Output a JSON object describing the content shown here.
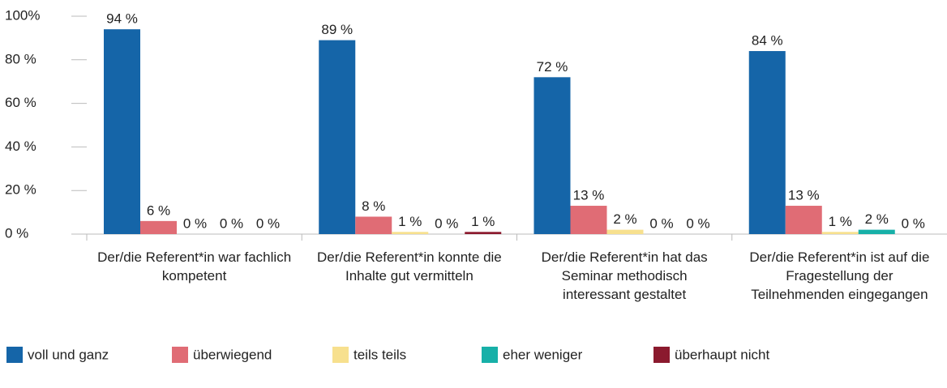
{
  "chart_data": {
    "type": "bar",
    "categories": [
      "Der/die Referent*in war fachlich kompetent",
      "Der/die Referent*in konnte die Inhalte gut vermitteln",
      "Der/die Referent*in hat das Seminar methodisch interessant gestaltet",
      "Der/die Referent*in ist auf die Fragestellung der Teilnehmenden eingegangen"
    ],
    "series": [
      {
        "name": "voll und ganz",
        "color": "#1565a8",
        "values": [
          94,
          89,
          72,
          84
        ],
        "value_labels": [
          "94 %",
          "89 %",
          "72 %",
          "84 %"
        ]
      },
      {
        "name": "überwiegend",
        "color": "#e06c75",
        "values": [
          6,
          8,
          13,
          13
        ],
        "value_labels": [
          "6 %",
          "8 %",
          "13 %",
          "13 %"
        ]
      },
      {
        "name": "teils teils",
        "color": "#f7e08e",
        "values": [
          0,
          1,
          2,
          1
        ],
        "value_labels": [
          "0 %",
          "1 %",
          "2 %",
          "1 %"
        ]
      },
      {
        "name": "eher weniger",
        "color": "#17b0a8",
        "values": [
          0,
          0,
          0,
          2
        ],
        "value_labels": [
          "0 %",
          "0 %",
          "0 %",
          "2 %"
        ]
      },
      {
        "name": "überhaupt nicht",
        "color": "#8b1a2e",
        "values": [
          0,
          1,
          0,
          0
        ],
        "value_labels": [
          "0 %",
          "1 %",
          "0 %",
          "0 %"
        ]
      }
    ],
    "ylim": [
      0,
      100
    ],
    "yticks": [
      {
        "value": 0,
        "label": "0 %"
      },
      {
        "value": 20,
        "label": "20 %"
      },
      {
        "value": 40,
        "label": "40 %"
      },
      {
        "value": 60,
        "label": "60 %"
      },
      {
        "value": 80,
        "label": "80 %"
      },
      {
        "value": 100,
        "label": "100%"
      }
    ],
    "legend": "bottom"
  }
}
